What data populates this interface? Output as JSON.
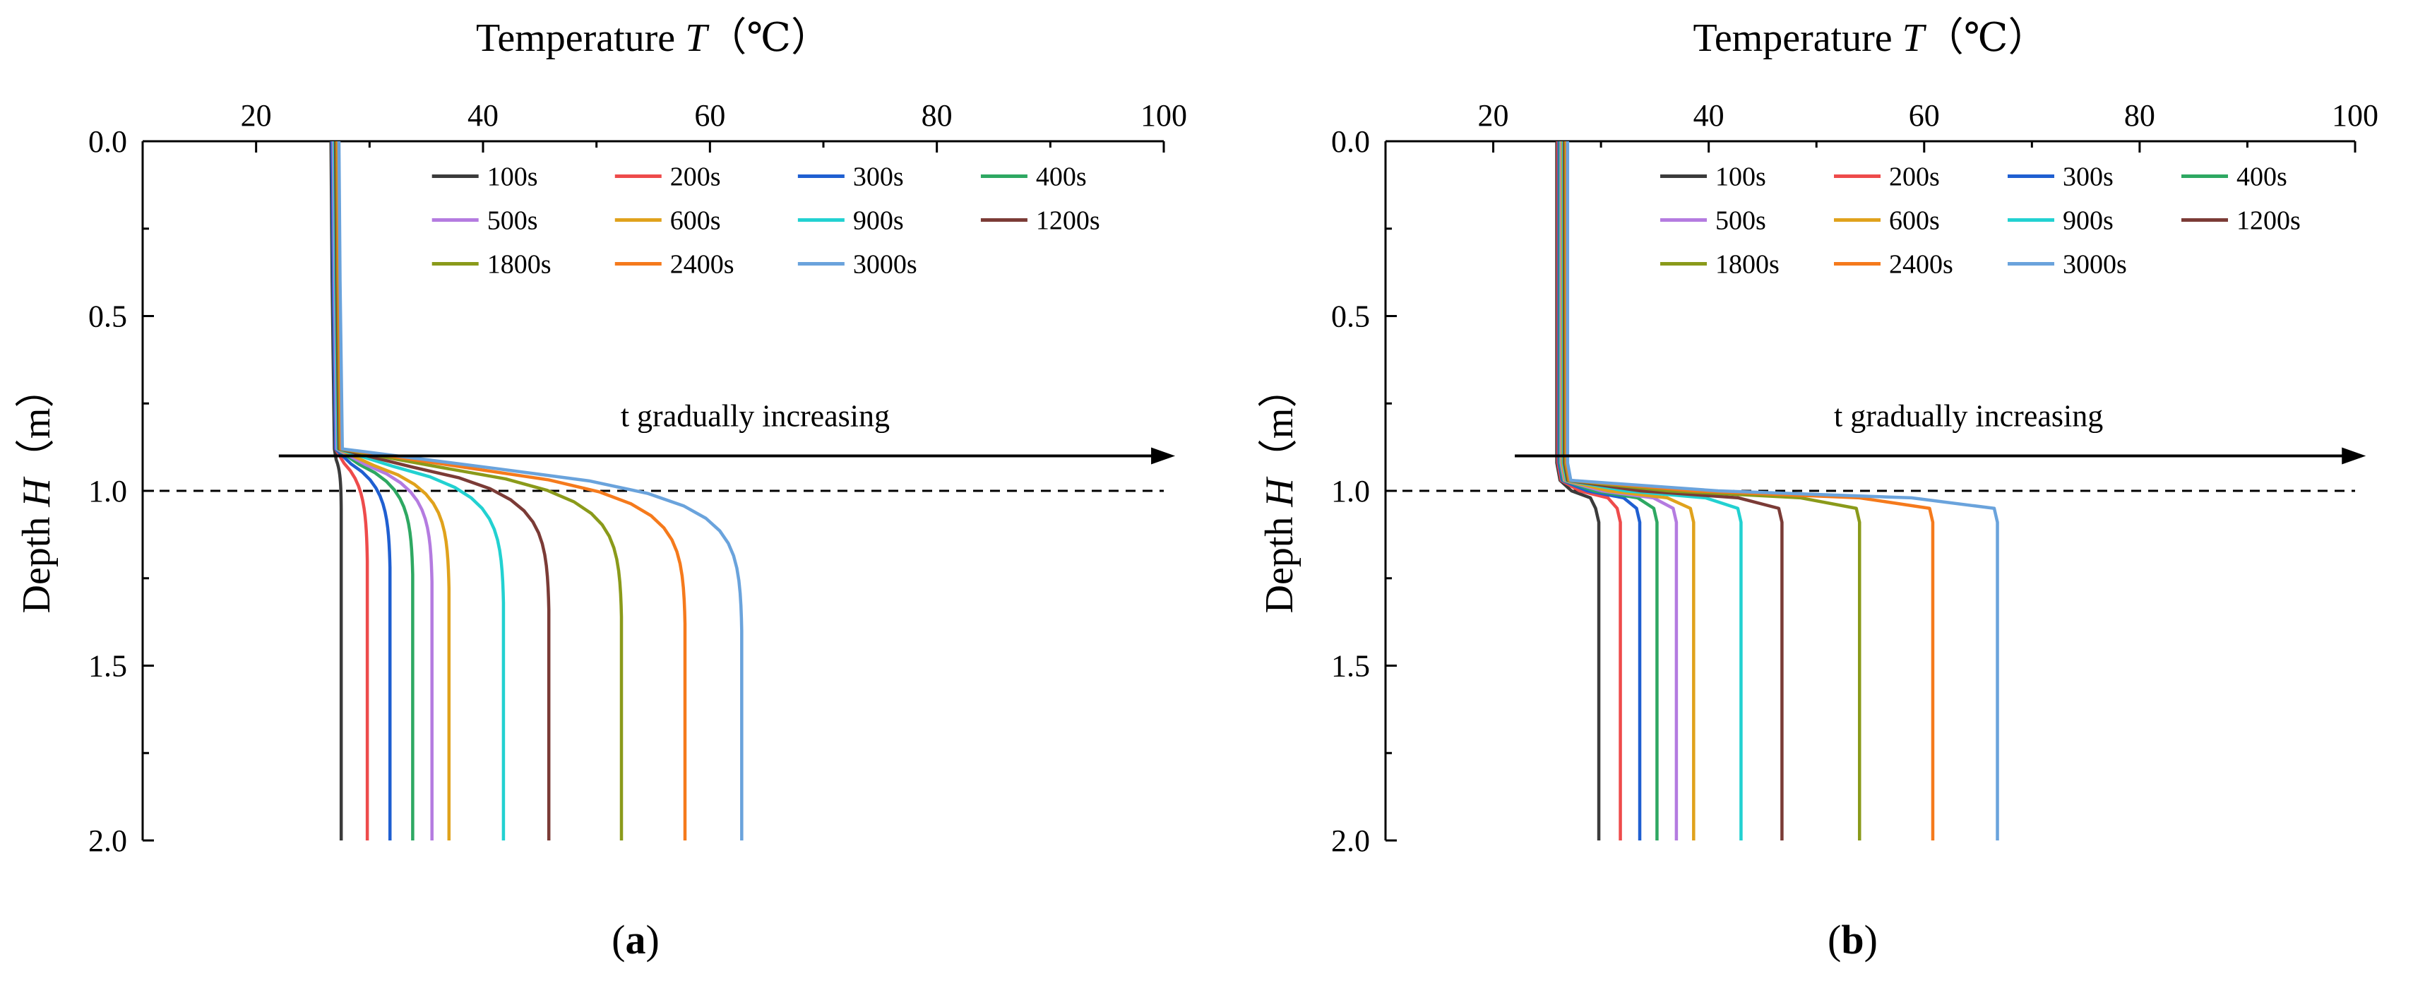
{
  "chart_data": [
    {
      "type": "line",
      "panel_label": "(a)",
      "title": "",
      "xlabel_text": "Temperature",
      "xlabel_symbol": "T",
      "xlabel_unit": "（℃）",
      "ylabel_text": "Depth",
      "ylabel_symbol": "H",
      "ylabel_unit": "（m）",
      "xlim": [
        10,
        100
      ],
      "ylim": [
        2.0,
        0.0
      ],
      "x_ticks": [
        20,
        40,
        60,
        80,
        100
      ],
      "y_ticks": [
        0.0,
        0.5,
        1.0,
        1.5,
        2.0
      ],
      "y_tick_labels": [
        "0.0",
        "0.5",
        "1.0",
        "1.5",
        "2.0"
      ],
      "x_axis_position": "top",
      "legend_position": "top-right",
      "reference_line": {
        "depth": 1.0,
        "style": "dashed"
      },
      "annotation": {
        "text": "t gradually increasing",
        "arrow_from_temp": 22,
        "arrow_to_temp": 101,
        "depth": 0.9
      },
      "series": [
        {
          "name": "100s",
          "color": "#3b3b3b",
          "surface_temp": 26.9,
          "bottom_temp": 27.5,
          "kink_depth": 1.05,
          "shape": "soft"
        },
        {
          "name": "200s",
          "color": "#ee4b4b",
          "surface_temp": 27.0,
          "bottom_temp": 29.8,
          "kink_depth": 1.2,
          "shape": "soft"
        },
        {
          "name": "300s",
          "color": "#1f5fd1",
          "surface_temp": 27.0,
          "bottom_temp": 31.8,
          "kink_depth": 1.22,
          "shape": "soft"
        },
        {
          "name": "400s",
          "color": "#2ea862",
          "surface_temp": 27.1,
          "bottom_temp": 33.8,
          "kink_depth": 1.24,
          "shape": "soft"
        },
        {
          "name": "500s",
          "color": "#b47be0",
          "surface_temp": 27.1,
          "bottom_temp": 35.5,
          "kink_depth": 1.26,
          "shape": "soft"
        },
        {
          "name": "600s",
          "color": "#e0a21c",
          "surface_temp": 27.2,
          "bottom_temp": 37.0,
          "kink_depth": 1.28,
          "shape": "soft"
        },
        {
          "name": "900s",
          "color": "#22d1d1",
          "surface_temp": 27.2,
          "bottom_temp": 41.8,
          "kink_depth": 1.32,
          "shape": "soft"
        },
        {
          "name": "1200s",
          "color": "#7b3b36",
          "surface_temp": 27.3,
          "bottom_temp": 45.8,
          "kink_depth": 1.34,
          "shape": "soft"
        },
        {
          "name": "1800s",
          "color": "#8a9a1a",
          "surface_temp": 27.4,
          "bottom_temp": 52.2,
          "kink_depth": 1.36,
          "shape": "soft"
        },
        {
          "name": "2400s",
          "color": "#f57a1c",
          "surface_temp": 27.5,
          "bottom_temp": 57.8,
          "kink_depth": 1.38,
          "shape": "soft"
        },
        {
          "name": "3000s",
          "color": "#6aa3dc",
          "surface_temp": 27.6,
          "bottom_temp": 62.8,
          "kink_depth": 1.4,
          "shape": "soft"
        }
      ]
    },
    {
      "type": "line",
      "panel_label": "(b)",
      "title": "",
      "xlabel_text": "Temperature",
      "xlabel_symbol": "T",
      "xlabel_unit": "（℃）",
      "ylabel_text": "Depth",
      "ylabel_symbol": "H",
      "ylabel_unit": "（m）",
      "xlim": [
        10,
        100
      ],
      "ylim": [
        2.0,
        0.0
      ],
      "x_ticks": [
        20,
        40,
        60,
        80,
        100
      ],
      "y_ticks": [
        0.0,
        0.5,
        1.0,
        1.5,
        2.0
      ],
      "y_tick_labels": [
        "0.0",
        "0.5",
        "1.0",
        "1.5",
        "2.0"
      ],
      "x_axis_position": "top",
      "legend_position": "top-right",
      "reference_line": {
        "depth": 1.0,
        "style": "dashed"
      },
      "annotation": {
        "text": "t gradually increasing",
        "arrow_from_temp": 22,
        "arrow_to_temp": 101,
        "depth": 0.9
      },
      "series": [
        {
          "name": "100s",
          "color": "#3b3b3b",
          "surface_temp": 25.9,
          "bottom_temp": 29.8,
          "kink_depth": 1.06,
          "shape": "sharp"
        },
        {
          "name": "200s",
          "color": "#ee4b4b",
          "surface_temp": 26.0,
          "bottom_temp": 31.8,
          "kink_depth": 1.06,
          "shape": "sharp"
        },
        {
          "name": "300s",
          "color": "#1f5fd1",
          "surface_temp": 26.1,
          "bottom_temp": 33.6,
          "kink_depth": 1.06,
          "shape": "sharp"
        },
        {
          "name": "400s",
          "color": "#2ea862",
          "surface_temp": 26.2,
          "bottom_temp": 35.2,
          "kink_depth": 1.06,
          "shape": "sharp"
        },
        {
          "name": "500s",
          "color": "#b47be0",
          "surface_temp": 26.3,
          "bottom_temp": 37.0,
          "kink_depth": 1.06,
          "shape": "sharp"
        },
        {
          "name": "600s",
          "color": "#e0a21c",
          "surface_temp": 26.4,
          "bottom_temp": 38.6,
          "kink_depth": 1.06,
          "shape": "sharp"
        },
        {
          "name": "900s",
          "color": "#22d1d1",
          "surface_temp": 26.5,
          "bottom_temp": 43.0,
          "kink_depth": 1.06,
          "shape": "sharp"
        },
        {
          "name": "1200s",
          "color": "#7b3b36",
          "surface_temp": 26.6,
          "bottom_temp": 46.8,
          "kink_depth": 1.06,
          "shape": "sharp"
        },
        {
          "name": "1800s",
          "color": "#8a9a1a",
          "surface_temp": 26.7,
          "bottom_temp": 54.0,
          "kink_depth": 1.06,
          "shape": "sharp"
        },
        {
          "name": "2400s",
          "color": "#f57a1c",
          "surface_temp": 26.8,
          "bottom_temp": 60.8,
          "kink_depth": 1.06,
          "shape": "sharp"
        },
        {
          "name": "3000s",
          "color": "#6aa3dc",
          "surface_temp": 26.9,
          "bottom_temp": 66.8,
          "kink_depth": 1.06,
          "shape": "sharp"
        }
      ]
    }
  ]
}
